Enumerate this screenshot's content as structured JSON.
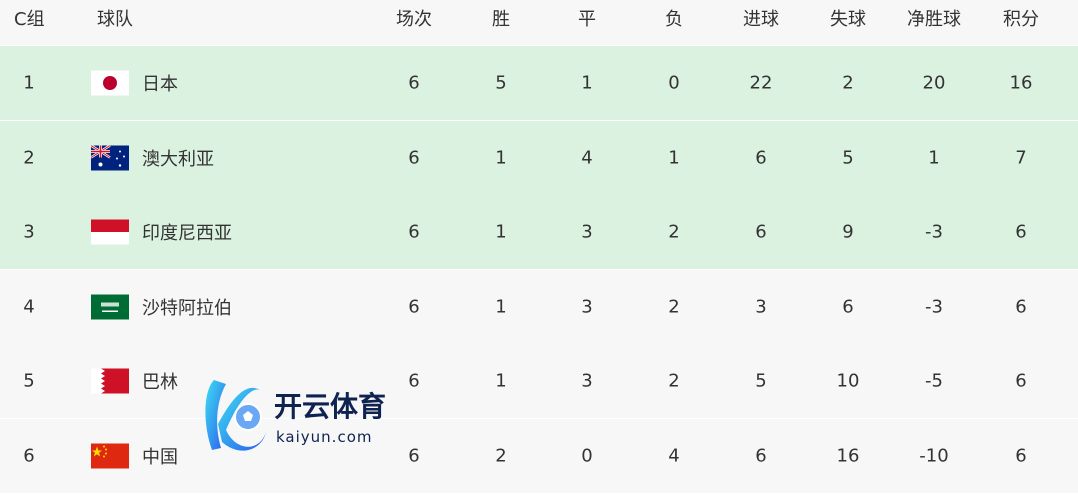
{
  "header": {
    "group": "C组",
    "team": "球队",
    "cols": [
      "场次",
      "胜",
      "平",
      "负",
      "进球",
      "失球",
      "净胜球",
      "积分"
    ]
  },
  "colors": {
    "qualified_bg": "#dcf2e0",
    "other_bg": "#f7f7f7",
    "text": "#333333"
  },
  "rows": [
    {
      "rank": "1",
      "flag": "japan-flag",
      "team": "日本",
      "stats": [
        "6",
        "5",
        "1",
        "0",
        "22",
        "2",
        "20",
        "16"
      ],
      "qualified": true
    },
    {
      "rank": "2",
      "flag": "australia-flag",
      "team": "澳大利亚",
      "stats": [
        "6",
        "1",
        "4",
        "1",
        "6",
        "5",
        "1",
        "7"
      ],
      "qualified": true
    },
    {
      "rank": "3",
      "flag": "indonesia-flag",
      "team": "印度尼西亚",
      "stats": [
        "6",
        "1",
        "3",
        "2",
        "6",
        "9",
        "-3",
        "6"
      ],
      "qualified": true
    },
    {
      "rank": "4",
      "flag": "saudi-arabia-flag",
      "team": "沙特阿拉伯",
      "stats": [
        "6",
        "1",
        "3",
        "2",
        "3",
        "6",
        "-3",
        "6"
      ],
      "qualified": false
    },
    {
      "rank": "5",
      "flag": "bahrain-flag",
      "team": "巴林",
      "stats": [
        "6",
        "1",
        "3",
        "2",
        "5",
        "10",
        "-5",
        "6"
      ],
      "qualified": false
    },
    {
      "rank": "6",
      "flag": "china-flag",
      "team": "中国",
      "stats": [
        "6",
        "2",
        "0",
        "4",
        "6",
        "16",
        "-10",
        "6"
      ],
      "qualified": false
    }
  ],
  "watermark": {
    "name": "开云体育",
    "domain": "kaiyun.com"
  }
}
